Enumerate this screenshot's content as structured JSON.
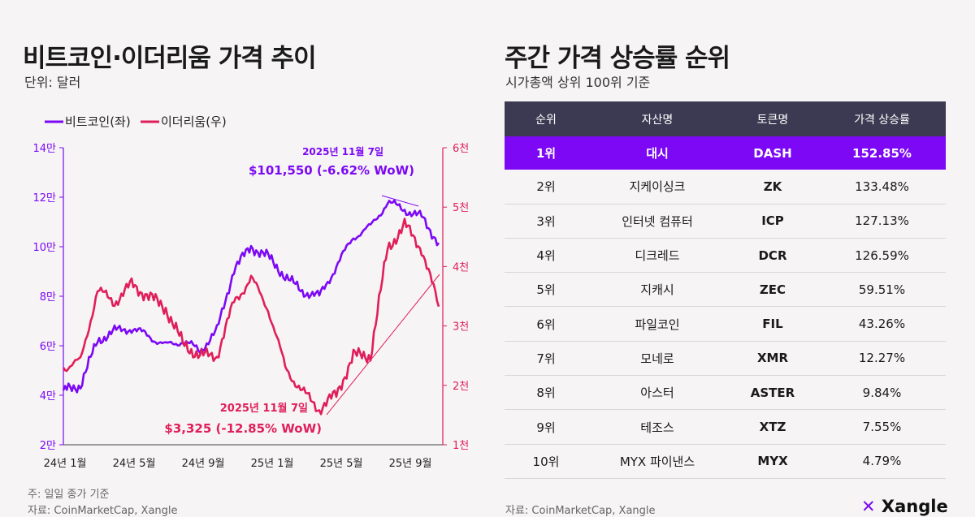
{
  "left": {
    "title": "비트코인·이더리움 가격 추이",
    "subtitle": "단위: 달러",
    "note": "주: 일일 종가 기준",
    "source": "자료: CoinMarketCap, Xangle"
  },
  "right": {
    "title": "주간 가격 상승률 순위",
    "subtitle": "시가총액 상위 100위 기준",
    "source": "자료: CoinMarketCap, Xangle",
    "brand": "Xangle",
    "headers": [
      "순위",
      "자산명",
      "토큰명",
      "가격 상승률"
    ],
    "rows": [
      {
        "rank": "1위",
        "name": "대시",
        "token": "DASH",
        "change": "152.85%"
      },
      {
        "rank": "2위",
        "name": "지케이싱크",
        "token": "ZK",
        "change": "133.48%"
      },
      {
        "rank": "3위",
        "name": "인터넷 컴퓨터",
        "token": "ICP",
        "change": "127.13%"
      },
      {
        "rank": "4위",
        "name": "디크레드",
        "token": "DCR",
        "change": "126.59%"
      },
      {
        "rank": "5위",
        "name": "지캐시",
        "token": "ZEC",
        "change": "59.51%"
      },
      {
        "rank": "6위",
        "name": "파일코인",
        "token": "FIL",
        "change": "43.26%"
      },
      {
        "rank": "7위",
        "name": "모네로",
        "token": "XMR",
        "change": "12.27%"
      },
      {
        "rank": "8위",
        "name": "아스터",
        "token": "ASTER",
        "change": "9.84%"
      },
      {
        "rank": "9위",
        "name": "테조스",
        "token": "XTZ",
        "change": "7.55%"
      },
      {
        "rank": "10위",
        "name": "MYX 파이낸스",
        "token": "MYX",
        "change": "4.79%"
      }
    ]
  },
  "chart_data": {
    "type": "line",
    "title": "비트코인·이더리움 가격 추이",
    "x_labels": [
      "24년 1월",
      "24년 5월",
      "24년 9월",
      "25년 1월",
      "25년 5월",
      "25년 9월"
    ],
    "x": [
      "24-01",
      "24-02",
      "24-03",
      "24-04",
      "24-05",
      "24-06",
      "24-07",
      "24-08",
      "24-09",
      "24-10",
      "24-11",
      "24-12",
      "25-01",
      "25-02",
      "25-03",
      "25-04",
      "25-05",
      "25-06",
      "25-07",
      "25-08",
      "25-09",
      "25-10",
      "25-11"
    ],
    "left_axis": {
      "ticks": [
        "2만",
        "4만",
        "6만",
        "8만",
        "10만",
        "12만",
        "14만"
      ],
      "range": [
        20000,
        140000
      ]
    },
    "right_axis": {
      "ticks": [
        "1천",
        "2천",
        "3천",
        "4천",
        "5천",
        "6천"
      ],
      "range": [
        1000,
        6000
      ]
    },
    "series": [
      {
        "name": "비트코인(좌)",
        "axis": "left",
        "color": "#7c08f5",
        "values": [
          42000,
          44000,
          62000,
          66000,
          67000,
          64000,
          60000,
          62000,
          58000,
          66000,
          91000,
          100000,
          96000,
          88000,
          82000,
          80000,
          92000,
          104000,
          108000,
          118000,
          115000,
          112000,
          101550
        ]
      },
      {
        "name": "이더리움(우)",
        "axis": "right",
        "color": "#e01e5a",
        "values": [
          2300,
          2400,
          3600,
          3400,
          3700,
          3500,
          3300,
          2700,
          2500,
          2500,
          3400,
          3800,
          3300,
          2300,
          1900,
          1600,
          1850,
          2500,
          2500,
          4300,
          4700,
          4300,
          3325
        ]
      }
    ],
    "annotations": [
      {
        "series": "비트코인(좌)",
        "date": "2025년 11월 7일",
        "label": "$101,550 (-6.62% WoW)"
      },
      {
        "series": "이더리움(우)",
        "date": "2025년 11월 7일",
        "label": "$3,325 (-12.85% WoW)"
      }
    ]
  }
}
